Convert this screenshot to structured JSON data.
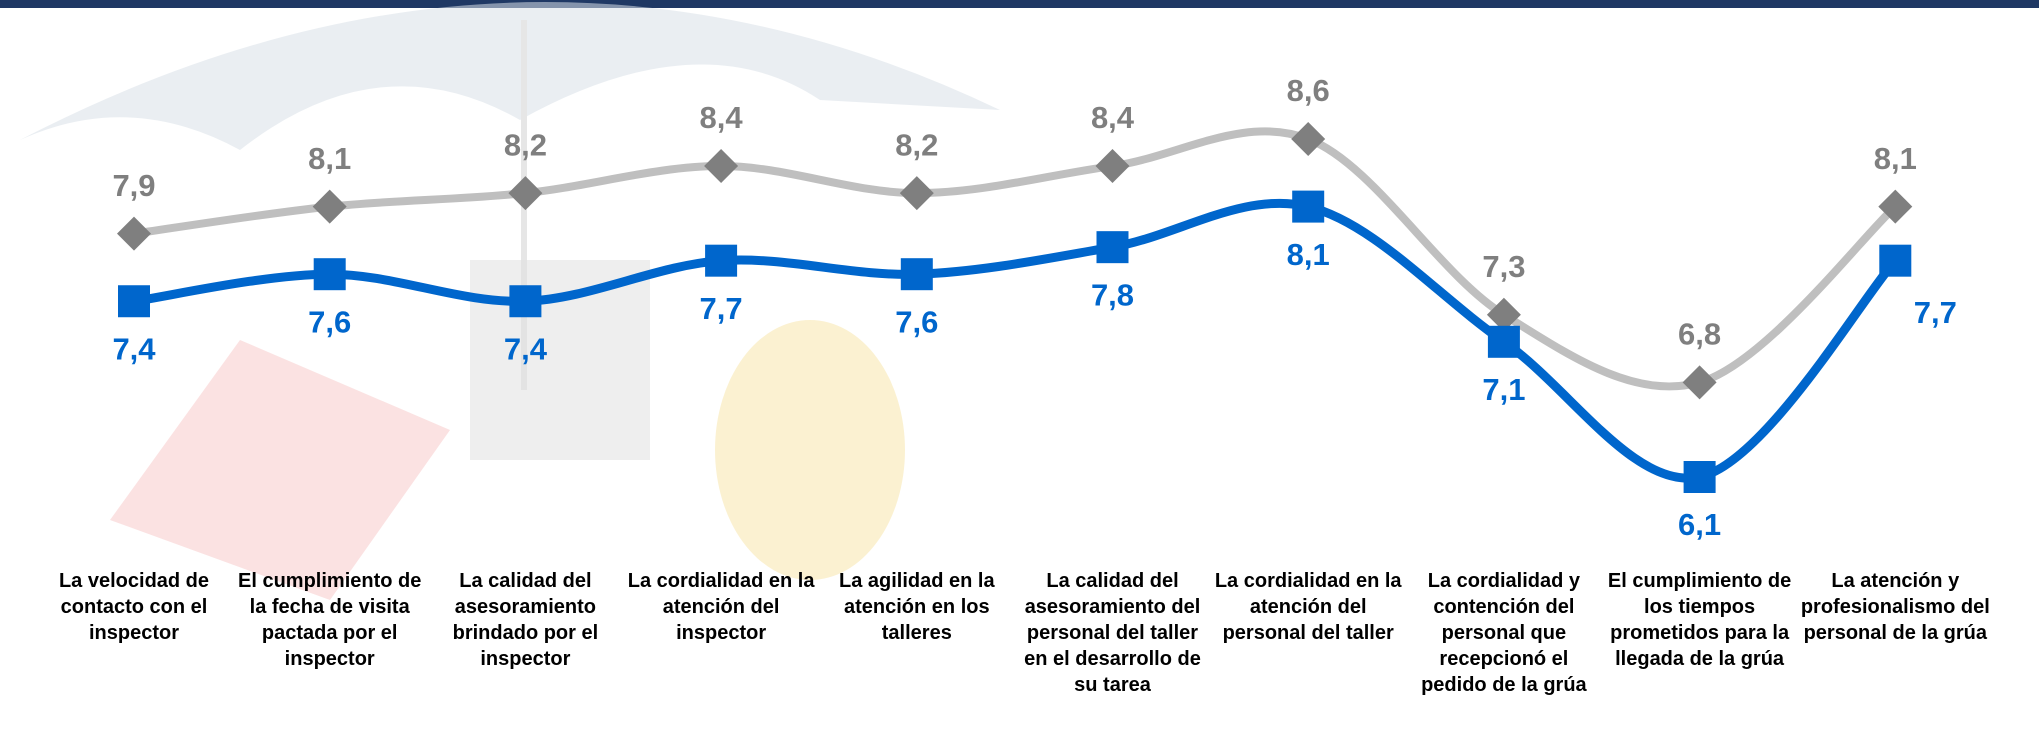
{
  "chart_data": {
    "type": "line",
    "categories": [
      "La velocidad de contacto con el inspector",
      "El cumplimiento de la fecha de visita pactada por el inspector",
      "La calidad del asesoramiento brindado por el inspector",
      "La cordialidad en la atención del inspector",
      "La agilidad en la atención en los talleres",
      "La calidad del asesoramiento del personal del taller en el desarrollo de su tarea",
      "La cordialidad en la atención del personal del taller",
      "La cordialidad y contención del personal que recepcionó el pedido de la grúa",
      "El cumplimiento de los tiempos prometidos para la llegada de la grúa",
      "La atención y profesionalismo del personal de la grúa"
    ],
    "series": [
      {
        "color": "#bfbfbf",
        "marker_color": "#7f7f7f",
        "label_color": "#7f7f7f",
        "marker": "diamond",
        "values": [
          7.9,
          8.1,
          8.2,
          8.4,
          8.2,
          8.4,
          8.6,
          7.3,
          6.8,
          8.1
        ],
        "value_labels": [
          "7,9",
          "8,1",
          "8,2",
          "8,4",
          "8,2",
          "8,4",
          "8,6",
          "7,3",
          "6,8",
          "8,1"
        ]
      },
      {
        "color": "#0066cc",
        "marker_color": "#0066cc",
        "label_color": "#0066cc",
        "marker": "square",
        "values": [
          7.4,
          7.6,
          7.4,
          7.7,
          7.6,
          7.8,
          8.1,
          7.1,
          6.1,
          7.7
        ],
        "value_labels": [
          "7,4",
          "7,6",
          "7,4",
          "7,7",
          "7,6",
          "7,8",
          "8,1",
          "7,1",
          "6,1",
          "7,7"
        ]
      }
    ]
  }
}
